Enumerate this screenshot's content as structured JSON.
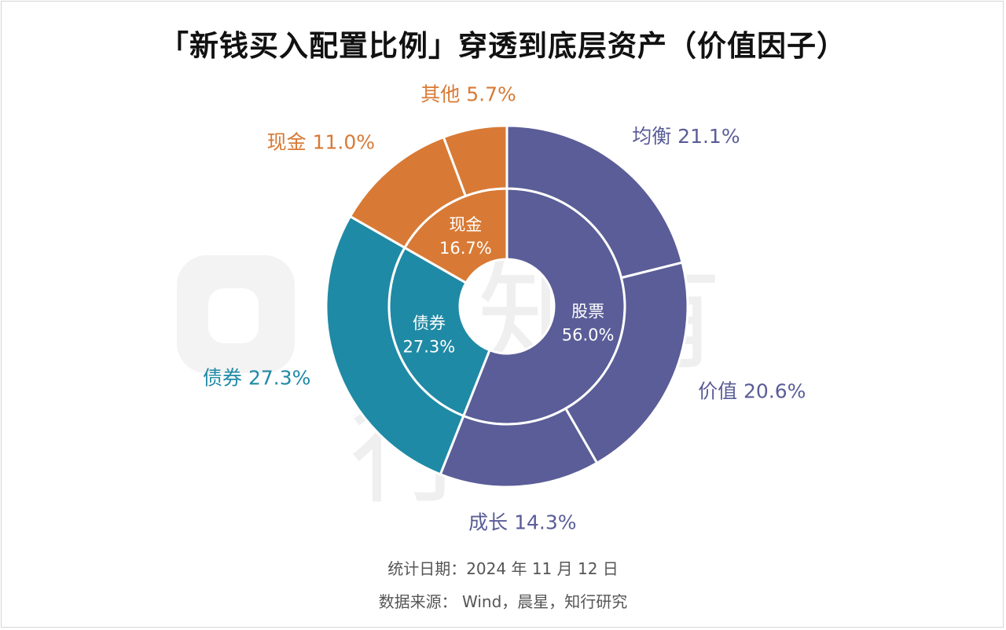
{
  "title": "「新钱买入配置比例」穿透到底层资产（价值因子）",
  "watermark": "有知有行",
  "footer": {
    "date_line": "统计日期：2024 年 11 月 12 日",
    "source_line": "数据来源： Wind，晨星，知行研究"
  },
  "colors": {
    "stock": "#5a5d97",
    "bond": "#1f8aa5",
    "cash": "#d87a35",
    "separator": "#ffffff"
  },
  "chart_data": {
    "type": "pie",
    "subtype": "nested-donut",
    "title": "「新钱买入配置比例」穿透到底层资产（价值因子）",
    "inner_ring": [
      {
        "name": "股票",
        "value": 56.0,
        "label": "56.0%",
        "group": "stock"
      },
      {
        "name": "债券",
        "value": 27.3,
        "label": "27.3%",
        "group": "bond"
      },
      {
        "name": "现金",
        "value": 16.7,
        "label": "16.7%",
        "group": "cash"
      }
    ],
    "outer_ring": [
      {
        "name": "均衡",
        "value": 21.1,
        "label": "21.1%",
        "group": "stock"
      },
      {
        "name": "价值",
        "value": 20.6,
        "label": "20.6%",
        "group": "stock"
      },
      {
        "name": "成长",
        "value": 14.3,
        "label": "14.3%",
        "group": "stock"
      },
      {
        "name": "债券",
        "value": 27.3,
        "label": "27.3%",
        "group": "bond"
      },
      {
        "name": "现金",
        "value": 11.0,
        "label": "11.0%",
        "group": "cash"
      },
      {
        "name": "其他",
        "value": 5.7,
        "label": "5.7%",
        "group": "cash"
      }
    ]
  }
}
